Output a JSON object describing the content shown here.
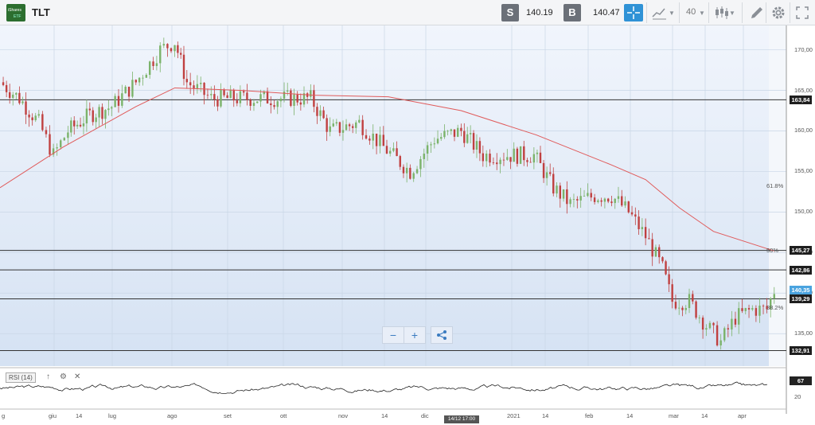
{
  "header": {
    "logo_top": "iShares",
    "logo_bottom": "ETF",
    "ticker": "TLT",
    "sell_label": "S",
    "sell_price": "140.19",
    "buy_label": "B",
    "buy_price": "140.47",
    "period_label": "40",
    "accent": "#2f92d6"
  },
  "chart_data": {
    "type": "candlestick",
    "title": "TLT",
    "y_range": [
      131,
      173
    ],
    "y_ticks": [
      "170,00",
      "165,00",
      "160,00",
      "155,00",
      "150,00",
      "145,00",
      "140,00",
      "135,00"
    ],
    "x_ticks": [
      "g",
      "giu",
      "14",
      "lug",
      "ago",
      "set",
      "ott",
      "nov",
      "14",
      "dic",
      "2021",
      "14",
      "feb",
      "14",
      "mar",
      "14",
      "apr"
    ],
    "close_path": [
      {
        "t": "2020-05-25",
        "v": 166
      },
      {
        "t": "2020-06-02",
        "v": 164
      },
      {
        "t": "2020-06-10",
        "v": 161
      },
      {
        "t": "2020-06-16",
        "v": 157
      },
      {
        "t": "2020-06-22",
        "v": 160
      },
      {
        "t": "2020-07-01",
        "v": 162
      },
      {
        "t": "2020-07-10",
        "v": 163
      },
      {
        "t": "2020-07-20",
        "v": 166
      },
      {
        "t": "2020-07-30",
        "v": 170
      },
      {
        "t": "2020-08-05",
        "v": 171
      },
      {
        "t": "2020-08-10",
        "v": 166
      },
      {
        "t": "2020-08-20",
        "v": 164
      },
      {
        "t": "2020-09-01",
        "v": 164
      },
      {
        "t": "2020-09-15",
        "v": 164
      },
      {
        "t": "2020-09-30",
        "v": 164
      },
      {
        "t": "2020-10-08",
        "v": 160
      },
      {
        "t": "2020-10-20",
        "v": 161
      },
      {
        "t": "2020-10-30",
        "v": 158
      },
      {
        "t": "2020-11-10",
        "v": 155
      },
      {
        "t": "2020-11-20",
        "v": 159
      },
      {
        "t": "2020-12-01",
        "v": 160
      },
      {
        "t": "2020-12-10",
        "v": 157
      },
      {
        "t": "2020-12-20",
        "v": 157
      },
      {
        "t": "2020-12-31",
        "v": 157
      },
      {
        "t": "2021-01-08",
        "v": 153
      },
      {
        "t": "2021-01-15",
        "v": 151
      },
      {
        "t": "2021-01-25",
        "v": 152
      },
      {
        "t": "2021-02-01",
        "v": 152
      },
      {
        "t": "2021-02-08",
        "v": 150
      },
      {
        "t": "2021-02-15",
        "v": 147
      },
      {
        "t": "2021-02-22",
        "v": 143
      },
      {
        "t": "2021-02-26",
        "v": 139
      },
      {
        "t": "2021-03-05",
        "v": 139
      },
      {
        "t": "2021-03-12",
        "v": 136
      },
      {
        "t": "2021-03-18",
        "v": 134
      },
      {
        "t": "2021-03-24",
        "v": 137
      },
      {
        "t": "2021-03-31",
        "v": 138
      },
      {
        "t": "2021-04-06",
        "v": 138
      },
      {
        "t": "2021-04-09",
        "v": 140.35
      }
    ],
    "moving_average": {
      "color": "#e05a5a",
      "values": [
        {
          "t": "2020-05-25",
          "v": 153
        },
        {
          "t": "2020-06-20",
          "v": 158
        },
        {
          "t": "2020-07-20",
          "v": 163
        },
        {
          "t": "2020-08-05",
          "v": 165.3
        },
        {
          "t": "2020-09-01",
          "v": 165
        },
        {
          "t": "2020-10-01",
          "v": 164.4
        },
        {
          "t": "2020-11-01",
          "v": 164.2
        },
        {
          "t": "2020-12-01",
          "v": 162.5
        },
        {
          "t": "2021-01-01",
          "v": 159.5
        },
        {
          "t": "2021-02-01",
          "v": 155.8
        },
        {
          "t": "2021-02-15",
          "v": 154
        },
        {
          "t": "2021-03-01",
          "v": 150.5
        },
        {
          "t": "2021-03-15",
          "v": 147.6
        },
        {
          "t": "2021-04-09",
          "v": 145.2
        }
      ]
    },
    "horizontal_levels": [
      {
        "value": 163.84,
        "label": "163,84",
        "color": "#333333"
      },
      {
        "value": 145.27,
        "label": "145,27",
        "color": "#333333"
      },
      {
        "value": 142.86,
        "label": "142,86",
        "color": "#333333"
      },
      {
        "value": 140.35,
        "label": "140,35",
        "color": "#4aa3df"
      },
      {
        "value": 139.29,
        "label": "139,29",
        "color": "#333333"
      },
      {
        "value": 132.91,
        "label": "132,91",
        "color": "#333333"
      }
    ],
    "fibonacci": [
      {
        "label": "61.8%",
        "value": 153.2
      },
      {
        "label": "50%",
        "value": 145.27
      },
      {
        "label": "38.2%",
        "value": 138.2
      }
    ],
    "rsi": {
      "label": "RSI (14)",
      "last": "67",
      "ticks": [
        "67",
        "20"
      ]
    },
    "cursor_time": "14/12 17:00"
  }
}
